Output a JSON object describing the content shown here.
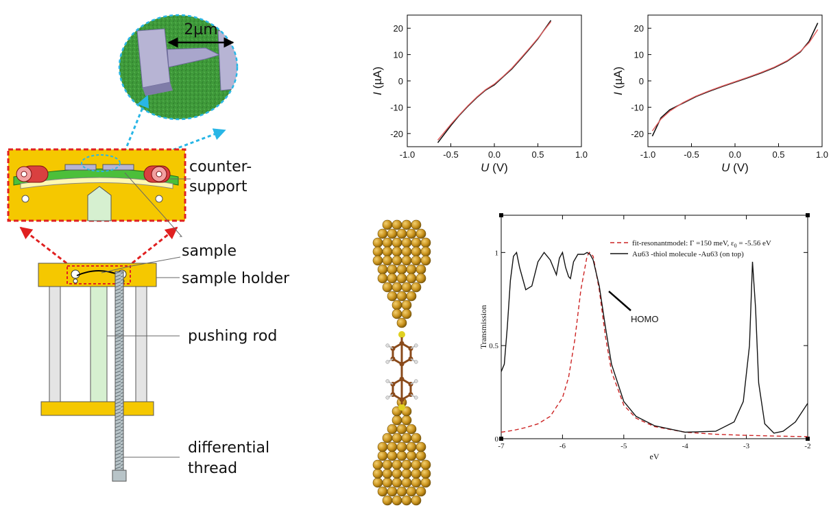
{
  "setup": {
    "scale_bar": "2µm",
    "labels": {
      "counter_support_1": "counter-",
      "counter_support_2": "support",
      "sample": "sample",
      "sample_holder": "sample holder",
      "pushing_rod": "pushing rod",
      "differential_1": "differential",
      "differential_2": "thread"
    },
    "colors": {
      "holder": "#f5c800",
      "frame_border": "#e02020",
      "rod": "#d6f0d0",
      "cylinder": "#d94040",
      "substrate": "#4cbf3a",
      "zoom_arrow": "#29b6e6"
    }
  },
  "chart_data": [
    {
      "type": "line",
      "xlabel_italic": "U",
      "xlabel_unit": " (V)",
      "ylabel_italic": "I",
      "ylabel_unit": " (µA)",
      "xlim": [
        -1.0,
        1.0
      ],
      "ylim": [
        -25,
        25
      ],
      "xticks": [
        "-1.0",
        "-0.5",
        "0.0",
        "0.5",
        "1.0"
      ],
      "yticks": [
        "-20",
        "-10",
        "0",
        "10",
        "20"
      ],
      "series": [
        {
          "color": "#111111",
          "x": [
            -0.65,
            -0.5,
            -0.4,
            -0.3,
            -0.2,
            -0.1,
            0.0,
            0.1,
            0.2,
            0.3,
            0.4,
            0.5,
            0.65
          ],
          "y": [
            -23.5,
            -17,
            -13,
            -9.5,
            -6.3,
            -3.5,
            -1.5,
            1.5,
            4.5,
            8.2,
            12,
            16,
            23
          ]
        },
        {
          "color": "#e05a5a",
          "x": [
            -0.65,
            -0.5,
            -0.4,
            -0.3,
            -0.2,
            -0.1,
            0.0,
            0.1,
            0.2,
            0.3,
            0.4,
            0.5,
            0.65
          ],
          "y": [
            -22.5,
            -16.5,
            -12.8,
            -9.3,
            -6.1,
            -3.3,
            -1.2,
            1.7,
            4.8,
            8.5,
            12.3,
            16.2,
            22.5
          ]
        }
      ]
    },
    {
      "type": "line",
      "xlabel_italic": "U",
      "xlabel_unit": " (V)",
      "ylabel_italic": "I",
      "ylabel_unit": " (µA)",
      "xlim": [
        -1.0,
        1.0
      ],
      "ylim": [
        -25,
        25
      ],
      "xticks": [
        "-1.0",
        "-0.5",
        "0.0",
        "0.5",
        "1.0"
      ],
      "yticks": [
        "-20",
        "-10",
        "0",
        "10",
        "20"
      ],
      "series": [
        {
          "color": "#111111",
          "x": [
            -0.95,
            -0.85,
            -0.75,
            -0.6,
            -0.45,
            -0.3,
            -0.15,
            0.0,
            0.15,
            0.3,
            0.45,
            0.6,
            0.75,
            0.85,
            0.95
          ],
          "y": [
            -21,
            -14,
            -11,
            -8.5,
            -6,
            -4,
            -2.2,
            -0.5,
            1.2,
            3,
            5,
            7.5,
            11,
            15,
            22
          ]
        },
        {
          "color": "#e05a5a",
          "x": [
            -0.95,
            -0.85,
            -0.75,
            -0.6,
            -0.45,
            -0.3,
            -0.15,
            0.0,
            0.15,
            0.3,
            0.45,
            0.6,
            0.75,
            0.85,
            0.95
          ],
          "y": [
            -19,
            -14.5,
            -11.5,
            -8.3,
            -5.8,
            -3.8,
            -2,
            -0.3,
            1.4,
            3.2,
            5.2,
            7.7,
            11.2,
            14.5,
            19.5
          ]
        }
      ]
    },
    {
      "type": "line",
      "xlabel": "eV",
      "ylabel": "Transmission",
      "xlim": [
        -7,
        -2
      ],
      "ylim": [
        0,
        1.2
      ],
      "xticks": [
        "-7",
        "-6",
        "-5",
        "-4",
        "-3",
        "-2"
      ],
      "yticks": [
        "0",
        "0.5",
        "1"
      ],
      "annotation": "HOMO",
      "series": [
        {
          "name_a": "fit-resonantmodel:  Γ  =150 meV,  ε",
          "name_sub": "0",
          "name_b": " = -5.56 eV",
          "color": "#cc2222",
          "dashed": true,
          "x": [
            -7,
            -6.8,
            -6.6,
            -6.4,
            -6.2,
            -6.0,
            -5.9,
            -5.8,
            -5.7,
            -5.6,
            -5.56,
            -5.5,
            -5.4,
            -5.3,
            -5.2,
            -5.0,
            -4.8,
            -4.5,
            -4,
            -3.5,
            -3,
            -2.5,
            -2
          ],
          "y": [
            0.035,
            0.045,
            0.06,
            0.08,
            0.12,
            0.22,
            0.33,
            0.53,
            0.8,
            0.98,
            1.0,
            0.98,
            0.8,
            0.55,
            0.36,
            0.18,
            0.11,
            0.065,
            0.035,
            0.024,
            0.018,
            0.014,
            0.011
          ]
        },
        {
          "name": "Au63 -thiol molecule -Au63 (on top)",
          "color": "#111111",
          "dashed": false,
          "x": [
            -7,
            -6.95,
            -6.9,
            -6.85,
            -6.8,
            -6.75,
            -6.7,
            -6.6,
            -6.5,
            -6.4,
            -6.3,
            -6.2,
            -6.1,
            -6.05,
            -6.0,
            -5.95,
            -5.9,
            -5.87,
            -5.82,
            -5.75,
            -5.65,
            -5.6,
            -5.55,
            -5.5,
            -5.4,
            -5.3,
            -5.2,
            -5.0,
            -4.8,
            -4.5,
            -4.0,
            -3.5,
            -3.2,
            -3.05,
            -2.95,
            -2.9,
            -2.85,
            -2.8,
            -2.7,
            -2.55,
            -2.4,
            -2.2,
            -2.0
          ],
          "y": [
            0.36,
            0.4,
            0.6,
            0.85,
            0.98,
            1.0,
            0.92,
            0.8,
            0.82,
            0.95,
            1.0,
            0.96,
            0.88,
            0.97,
            1.0,
            0.92,
            0.87,
            0.86,
            0.95,
            0.99,
            0.99,
            1.0,
            0.99,
            0.96,
            0.82,
            0.6,
            0.4,
            0.2,
            0.12,
            0.07,
            0.035,
            0.04,
            0.09,
            0.2,
            0.5,
            0.95,
            0.7,
            0.3,
            0.08,
            0.03,
            0.04,
            0.09,
            0.19
          ]
        }
      ]
    }
  ]
}
